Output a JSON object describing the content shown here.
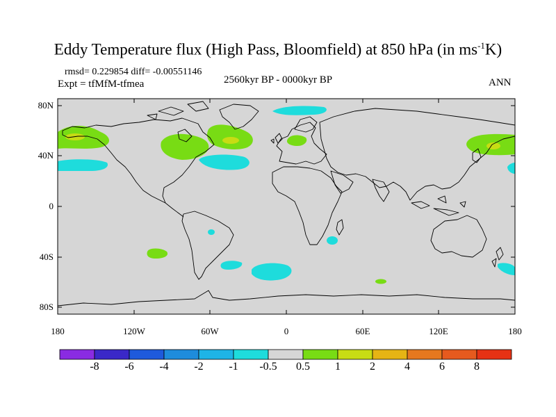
{
  "title": {
    "main": "Eddy Temperature flux (High Pass, Bloomfield) at 850 hPa (in ms",
    "sup": "-1",
    "tail": "K)"
  },
  "stats": "rmsd= 0.229854 diff= -0.00551146",
  "experiment": "Expt = tfMfM-tfmea",
  "period": "2560kyr BP - 0000kyr BP",
  "season": "ANN",
  "map": {
    "background": "#d6d6d6",
    "lat_labels": [
      "80N",
      "40N",
      "0",
      "40S",
      "80S"
    ],
    "lon_labels": [
      "180",
      "120W",
      "60W",
      "0",
      "60E",
      "120E",
      "180"
    ]
  },
  "colorbar": {
    "labels": [
      "-8",
      "-6",
      "-4",
      "-2",
      "-1",
      "-0.5",
      "0.5",
      "1",
      "2",
      "4",
      "6",
      "8"
    ],
    "colors": [
      "#8a2be2",
      "#3a28c8",
      "#1e5adc",
      "#1e8cdc",
      "#1eb4e6",
      "#1edcdc",
      "#d6d6d6",
      "#78dc14",
      "#c8dc14",
      "#e6b414",
      "#e6781e",
      "#e65a1e",
      "#e63214"
    ]
  },
  "anomaly_colors": {
    "positive_weak": "#78dc14",
    "positive_mid": "#c8dc14",
    "negative_weak": "#1edcdc"
  }
}
